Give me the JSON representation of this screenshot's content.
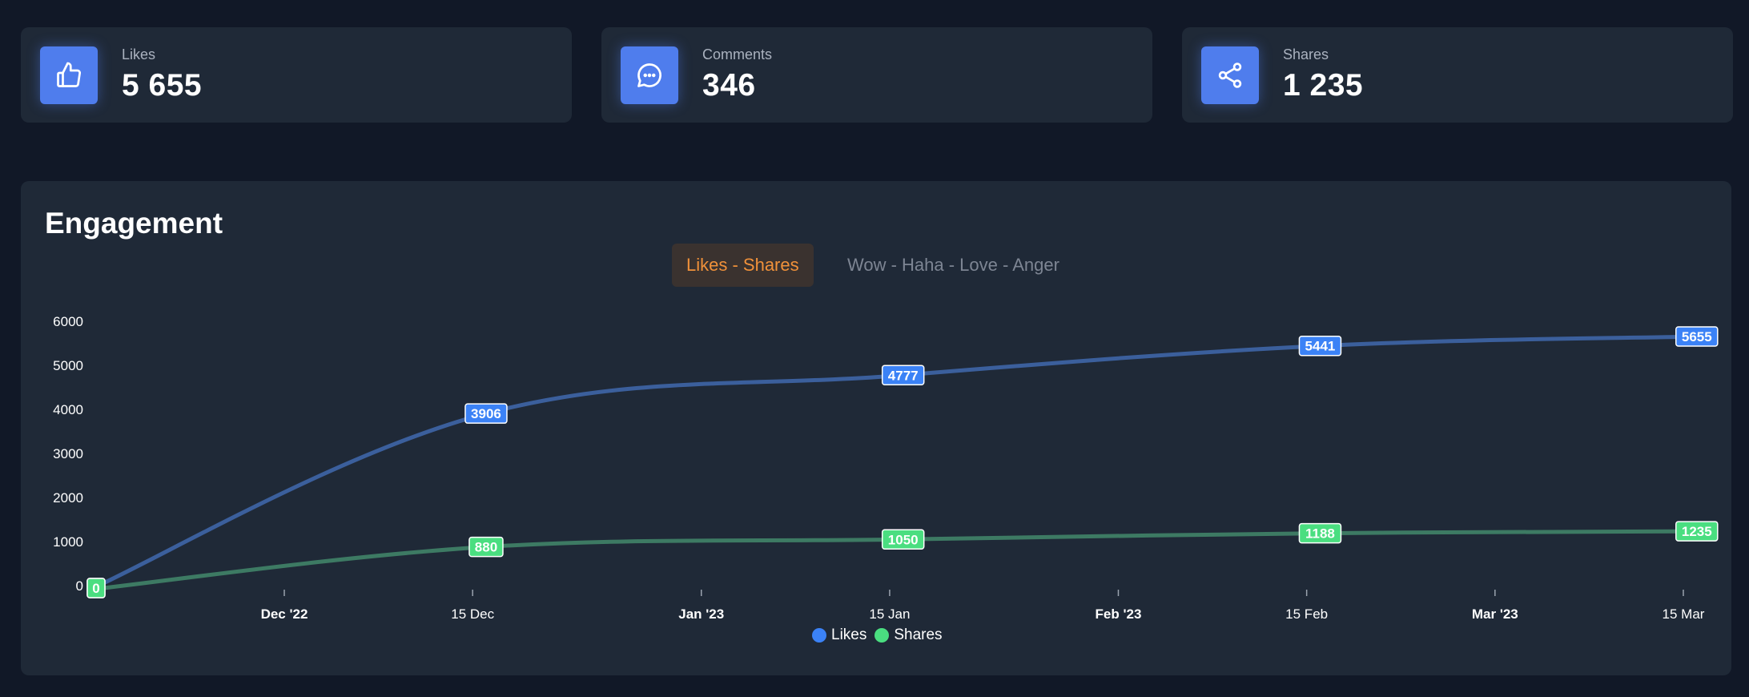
{
  "stats": [
    {
      "label": "Likes",
      "value": "5 655",
      "icon": "thumbs-up-icon"
    },
    {
      "label": "Comments",
      "value": "346",
      "icon": "chat-bubble-icon"
    },
    {
      "label": "Shares",
      "value": "1 235",
      "icon": "share-icon"
    }
  ],
  "panel": {
    "title": "Engagement",
    "tabs": [
      {
        "label": "Likes - Shares",
        "active": true
      },
      {
        "label": "Wow - Haha - Love - Anger",
        "active": false
      }
    ]
  },
  "colors": {
    "likes": "#3b82f6",
    "shares": "#4ade80",
    "accent": "#f0913a"
  },
  "chart_data": {
    "type": "line",
    "title": "",
    "xlabel": "",
    "ylabel": "",
    "ylim": [
      0,
      6000
    ],
    "yticks": [
      0,
      1000,
      2000,
      3000,
      4000,
      5000,
      6000
    ],
    "xticks": [
      {
        "date": "2022-12-01",
        "label": "Dec '22",
        "major": true
      },
      {
        "date": "2022-12-15",
        "label": "15 Dec",
        "major": false
      },
      {
        "date": "2023-01-01",
        "label": "Jan '23",
        "major": true
      },
      {
        "date": "2023-01-15",
        "label": "15 Jan",
        "major": false
      },
      {
        "date": "2023-02-01",
        "label": "Feb '23",
        "major": true
      },
      {
        "date": "2023-02-15",
        "label": "15 Feb",
        "major": false
      },
      {
        "date": "2023-03-01",
        "label": "Mar '23",
        "major": true
      },
      {
        "date": "2023-03-15",
        "label": "15 Mar",
        "major": false
      }
    ],
    "x": [
      "2022-11-16",
      "2022-12-16",
      "2023-01-16",
      "2023-02-16",
      "2023-03-16"
    ],
    "series": [
      {
        "name": "Likes",
        "values": [
          0,
          3906,
          4777,
          5441,
          5655
        ]
      },
      {
        "name": "Shares",
        "values": [
          0,
          880,
          1050,
          1188,
          1235
        ]
      }
    ],
    "legend": "bottom-center",
    "grid": false
  }
}
